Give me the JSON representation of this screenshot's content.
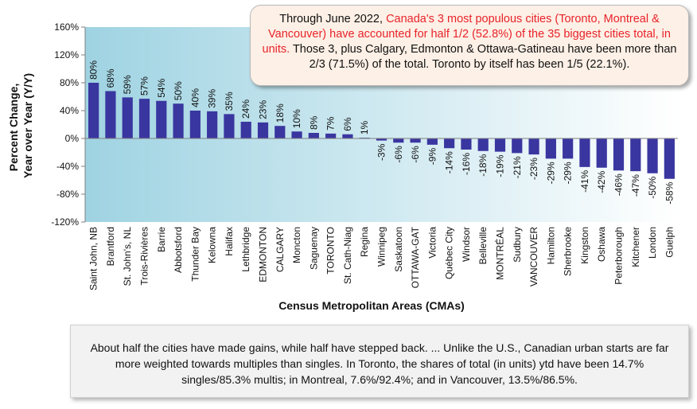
{
  "chart_data": {
    "type": "bar",
    "ylabel_lines": [
      "Percent Change,",
      "Year over Year (Y/Y)"
    ],
    "xlabel": "Census Metropolitan Areas (CMAs)",
    "ylim": [
      -120,
      160
    ],
    "yticks": [
      -120,
      -80,
      -40,
      0,
      40,
      80,
      120,
      160
    ],
    "tick_suffix": "%",
    "gridlines": false,
    "bar_color": "#3a36a0",
    "plot_gradient": [
      "#9fd3e2",
      "#ffffff"
    ],
    "categories": [
      "Saint John, NB",
      "Brantford",
      "St. John's, NL",
      "Trois-Rivières",
      "Barrie",
      "Abbotsford",
      "Thunder Bay",
      "Kelowna",
      "Halifax",
      "Lethbridge",
      "EDMONTON",
      "CALGARY",
      "Moncton",
      "Saguenay",
      "TORONTO",
      "St. Cath-Niag",
      "Regina",
      "Winnipeg",
      "Saskatoon",
      "OTTAWA-GAT",
      "Victoria",
      "Québec City",
      "Windsor",
      "Belleville",
      "MONTRÉAL",
      "Sudbury",
      "VANCOUVER",
      "Hamilton",
      "Sherbrooke",
      "Kingston",
      "Oshawa",
      "Peterborough",
      "Kitchener",
      "London",
      "Guelph"
    ],
    "values": [
      80,
      68,
      59,
      57,
      54,
      50,
      40,
      39,
      35,
      24,
      23,
      18,
      10,
      8,
      7,
      6,
      1,
      -3,
      -6,
      -6,
      -9,
      -14,
      -16,
      -18,
      -19,
      -21,
      -23,
      -29,
      -29,
      -41,
      -42,
      -46,
      -47,
      -50,
      -58
    ],
    "data_labels": [
      "80%",
      "68%",
      "59%",
      "57%",
      "54%",
      "50%",
      "40%",
      "39%",
      "35%",
      "24%",
      "23%",
      "18%",
      "10%",
      "8%",
      "7%",
      "6%",
      "1%",
      "-3%",
      "-6%",
      "-6%",
      "-9%",
      "-14%",
      "-16%",
      "-18%",
      "-19%",
      "-21%",
      "-23%",
      "-29%",
      "-29%",
      "-41%",
      "-42%",
      "-46%",
      "-47%",
      "-50%",
      "-58%"
    ]
  },
  "callout": {
    "part1": "Through June 2022, ",
    "highlight": "Canada's 3 most populous cities (Toronto, Montreal & Vancouver) have accounted for half 1/2 (52.8%) of the 35 biggest cities total, in units.",
    "part2": " Those 3, plus Calgary, Edmonton & Ottawa-Gatineau have been more than 2/3 (71.5%) of the total. Toronto by itself has been 1/5 (22.1%)."
  },
  "note": {
    "text": "About half the cities have made gains, while half have stepped back. ... Unlike the U.S., Canadian urban starts are far more weighted towards multiples than singles. In Toronto, the shares of total (in units) ytd have been 14.7% singles/85.3% multis; in Montreal, 7.6%/92.4%; and in Vancouver, 13.5%/86.5%."
  }
}
